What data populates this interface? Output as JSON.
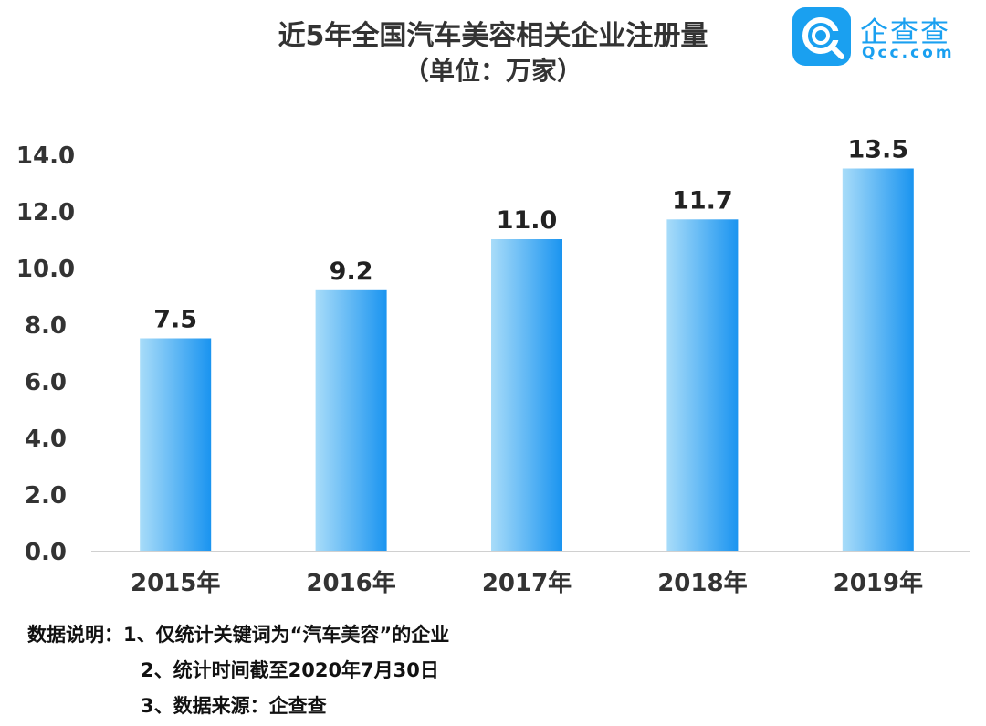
{
  "chart_data": {
    "type": "bar",
    "title": "近5年全国汽车美容相关企业注册量",
    "subtitle": "（单位：万家）",
    "categories": [
      "2015年",
      "2016年",
      "2017年",
      "2018年",
      "2019年"
    ],
    "values": [
      7.5,
      9.2,
      11.0,
      11.7,
      13.5
    ],
    "value_labels": [
      "7.5",
      "9.2",
      "11.0",
      "11.7",
      "13.5"
    ],
    "y_ticks": [
      "0.0",
      "2.0",
      "4.0",
      "6.0",
      "8.0",
      "10.0",
      "12.0",
      "14.0"
    ],
    "ylim": [
      0,
      14
    ],
    "xlabel": "",
    "ylabel": "",
    "grid": false,
    "legend": "none",
    "bar_gradient": [
      "#a8dcf9",
      "#1a94f0"
    ]
  },
  "logo": {
    "name": "企查查",
    "domain": "Qcc.com",
    "icon": "qcc-logo-icon",
    "color": "#1aa0f0"
  },
  "notes": {
    "prefix": "数据说明：",
    "items": [
      "1、仅统计关键词为“汽车美容”的企业",
      "2、统计时间截至2020年7月30日",
      "3、数据来源：企查查"
    ]
  }
}
